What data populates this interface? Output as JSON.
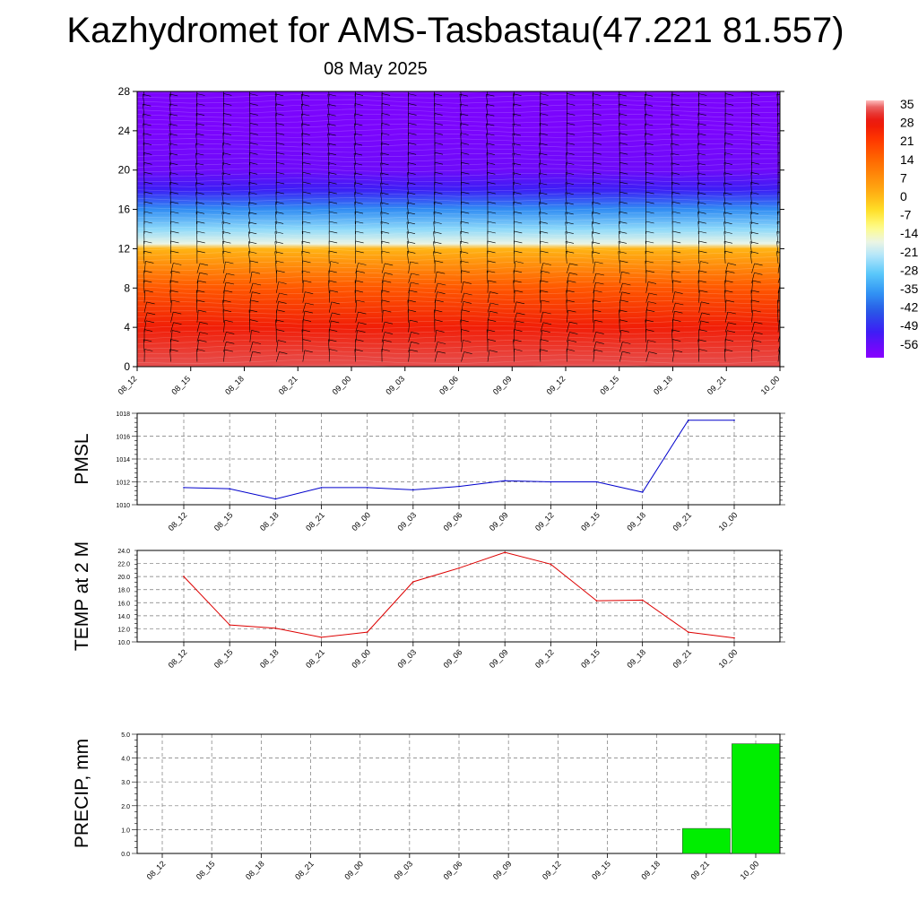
{
  "title": "Kazhydromet for AMS-Tasbastau(47.221 81.557)",
  "subtitle": "08 May 2025",
  "time_labels": [
    "08_12",
    "08_15",
    "08_18",
    "08_21",
    "09_00",
    "09_03",
    "09_06",
    "09_09",
    "09_12",
    "09_15",
    "09_18",
    "09_21",
    "10_00"
  ],
  "chart_data": [
    {
      "type": "heatmap",
      "x": [
        "08_12",
        "08_15",
        "08_18",
        "08_21",
        "09_00",
        "09_03",
        "09_06",
        "09_09",
        "09_12",
        "09_15",
        "09_18",
        "09_21",
        "10_00"
      ],
      "yticks": [
        0,
        4,
        8,
        12,
        16,
        20,
        24,
        28
      ],
      "ylim": [
        0,
        28
      ],
      "colorbar": {
        "labels": [
          "35",
          "28",
          "21",
          "14",
          "7",
          "0",
          "-7",
          "-14",
          "-21",
          "-28",
          "-35",
          "-42",
          "-49",
          "-56"
        ],
        "range": [
          -60,
          38
        ]
      },
      "temperature_profile": [
        {
          "level": 0,
          "value": 35
        },
        {
          "level": 4,
          "value": 28
        },
        {
          "level": 8,
          "value": 18
        },
        {
          "level": 12,
          "value": 2
        },
        {
          "level": 12.5,
          "value": -16
        },
        {
          "level": 14,
          "value": -24
        },
        {
          "level": 16,
          "value": -36
        },
        {
          "level": 18,
          "value": -50
        },
        {
          "level": 20,
          "value": -56
        },
        {
          "level": 24,
          "value": -58
        },
        {
          "level": 28,
          "value": -58
        }
      ],
      "wind_barbs": true,
      "grid": false
    },
    {
      "type": "line",
      "ylabel": "PMSL",
      "x": [
        "08_12",
        "08_15",
        "08_18",
        "08_21",
        "09_00",
        "09_03",
        "09_06",
        "09_09",
        "09_12",
        "09_15",
        "09_18",
        "09_21",
        "10_00"
      ],
      "values": [
        1011.5,
        1011.4,
        1010.5,
        1011.5,
        1011.5,
        1011.3,
        1011.6,
        1012.1,
        1012.0,
        1012.0,
        1011.1,
        1017.4,
        1017.4
      ],
      "ylim": [
        1010,
        1018
      ],
      "yticks": [
        "1010",
        "1012",
        "1014",
        "1016",
        "1018"
      ],
      "color": "#0000cc",
      "grid": true
    },
    {
      "type": "line",
      "ylabel": "TEMP at 2 M",
      "x": [
        "08_12",
        "08_15",
        "08_18",
        "08_21",
        "09_00",
        "09_03",
        "09_06",
        "09_09",
        "09_12",
        "09_15",
        "09_18",
        "09_21",
        "10_00"
      ],
      "values": [
        20.0,
        12.6,
        12.1,
        10.7,
        11.5,
        19.2,
        21.3,
        23.7,
        21.9,
        16.3,
        16.4,
        11.5,
        10.6
      ],
      "ylim": [
        10,
        24
      ],
      "yticks": [
        "10.0",
        "12.0",
        "14.0",
        "16.0",
        "18.0",
        "20.0",
        "22.0",
        "24.0"
      ],
      "color": "#dd0000",
      "grid": true
    },
    {
      "type": "bar",
      "ylabel": "PRECIP, mm",
      "categories": [
        "08_12",
        "08_15",
        "08_18",
        "08_21",
        "09_00",
        "09_03",
        "09_06",
        "09_09",
        "09_12",
        "09_15",
        "09_18",
        "09_21",
        "10_00"
      ],
      "values": [
        0,
        0,
        0,
        0,
        0,
        0,
        0,
        0,
        0,
        0,
        0,
        1.05,
        4.6
      ],
      "ylim": [
        0,
        5
      ],
      "yticks": [
        "0.0",
        "1.0",
        "2.0",
        "3.0",
        "4.0",
        "5.0"
      ],
      "color": "#00ee00",
      "grid": true
    }
  ]
}
